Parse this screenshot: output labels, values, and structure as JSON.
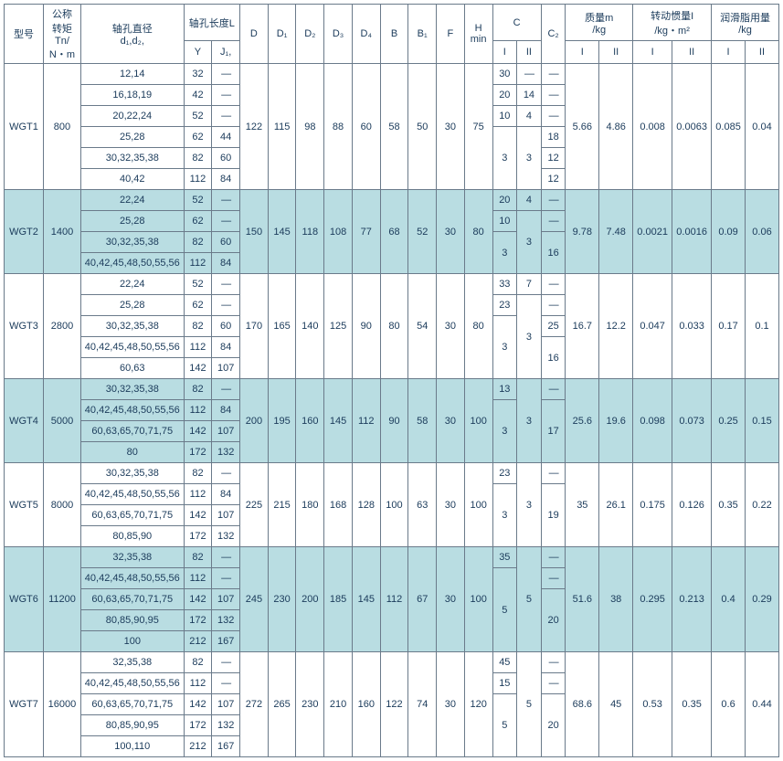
{
  "headers": {
    "model": "型号",
    "tn": "公称\n转矩\nTn/\nN・m",
    "d1d2": "轴孔直径\nd₁,d₂,",
    "boreLen": "轴孔长度L",
    "Y": "Y",
    "J1": "J₁,",
    "D": "D",
    "D1": "D₁",
    "D2": "D₂",
    "D3": "D₃",
    "D4": "D₄",
    "B": "B",
    "B1": "B₁",
    "F": "F",
    "Hmin": "H\nmin",
    "C": "C",
    "C2": "C₂",
    "mass": "质量m\n/kg",
    "inertia": "转动惯量I\n/kg・m²",
    "grease": "润滑脂用量\n/kg",
    "I": "I",
    "II": "II"
  },
  "dash": "—",
  "groups": [
    {
      "model": "WGT1",
      "tn": "800",
      "alt": false,
      "rows": [
        {
          "d": "12,14",
          "y": "32",
          "j": "—",
          "ci": "30",
          "cii": "—",
          "c2": "—"
        },
        {
          "d": "16,18,19",
          "y": "42",
          "j": "—",
          "ci": "20",
          "cii": "14",
          "c2": "—"
        },
        {
          "d": "20,22,24",
          "y": "52",
          "j": "—",
          "ci": "10",
          "cii": "4",
          "c2": "—"
        },
        {
          "d": "25,28",
          "y": "62",
          "j": "44",
          "c2": "18"
        },
        {
          "d": "30,32,35,38",
          "y": "82",
          "j": "60",
          "c2": "12"
        },
        {
          "d": "40,42",
          "y": "112",
          "j": "84",
          "c2": "12"
        }
      ],
      "merge": {
        "ci_from": 3,
        "ci_span": 3,
        "ci": "3",
        "cii_from": 3,
        "cii_span": 3,
        "cii": "3"
      },
      "D": "122",
      "D1": "115",
      "D2": "98",
      "D3": "88",
      "D4": "60",
      "B": "58",
      "B1": "50",
      "F": "30",
      "H": "75",
      "mI": "5.66",
      "mII": "4.86",
      "iI": "0.008",
      "iII": "0.0063",
      "gI": "0.085",
      "gII": "0.04"
    },
    {
      "model": "WGT2",
      "tn": "1400",
      "alt": true,
      "rows": [
        {
          "d": "22,24",
          "y": "52",
          "j": "—",
          "ci": "20",
          "cii": "4",
          "c2": "—"
        },
        {
          "d": "25,28",
          "y": "62",
          "j": "—",
          "ci": "10",
          "c2": "—"
        },
        {
          "d": "30,32,35,38",
          "y": "82",
          "j": "60"
        },
        {
          "d": "40,42,45,48,50,55,56",
          "y": "112",
          "j": "84"
        }
      ],
      "merge": {
        "ci_from": 2,
        "ci_span": 2,
        "ci": "3",
        "cii_from": 1,
        "cii_span": 3,
        "cii": "3",
        "c2_from": 2,
        "c2_span": 2,
        "c2": "16"
      },
      "D": "150",
      "D1": "145",
      "D2": "118",
      "D3": "108",
      "D4": "77",
      "B": "68",
      "B1": "52",
      "F": "30",
      "H": "80",
      "mI": "9.78",
      "mII": "7.48",
      "iI": "0.0021",
      "iII": "0.0016",
      "gI": "0.09",
      "gII": "0.06"
    },
    {
      "model": "WGT3",
      "tn": "2800",
      "alt": false,
      "rows": [
        {
          "d": "22,24",
          "y": "52",
          "j": "—",
          "ci": "33",
          "cii": "7",
          "c2": "—"
        },
        {
          "d": "25,28",
          "y": "62",
          "j": "—",
          "ci": "23",
          "c2": "—"
        },
        {
          "d": "30,32,35,38",
          "y": "82",
          "j": "60",
          "c2": "25"
        },
        {
          "d": "40,42,45,48,50,55,56",
          "y": "112",
          "j": "84"
        },
        {
          "d": "60,63",
          "y": "142",
          "j": "107"
        }
      ],
      "merge": {
        "ci_from": 2,
        "ci_span": 3,
        "ci": "3",
        "cii_from": 1,
        "cii_span": 4,
        "cii": "3",
        "c2_from": 3,
        "c2_span": 2,
        "c2": "16"
      },
      "D": "170",
      "D1": "165",
      "D2": "140",
      "D3": "125",
      "D4": "90",
      "B": "80",
      "B1": "54",
      "F": "30",
      "H": "80",
      "mI": "16.7",
      "mII": "12.2",
      "iI": "0.047",
      "iII": "0.033",
      "gI": "0.17",
      "gII": "0.1"
    },
    {
      "model": "WGT4",
      "tn": "5000",
      "alt": true,
      "rows": [
        {
          "d": "30,32,35,38",
          "y": "82",
          "j": "—",
          "ci": "13",
          "c2": "—"
        },
        {
          "d": "40,42,45,48,50,55,56",
          "y": "112",
          "j": "84"
        },
        {
          "d": "60,63,65,70,71,75",
          "y": "142",
          "j": "107"
        },
        {
          "d": "80",
          "y": "172",
          "j": "132"
        }
      ],
      "merge": {
        "ci_from": 1,
        "ci_span": 3,
        "ci": "3",
        "cii_from": 0,
        "cii_span": 4,
        "cii": "3",
        "c2_from": 1,
        "c2_span": 3,
        "c2": "17"
      },
      "D": "200",
      "D1": "195",
      "D2": "160",
      "D3": "145",
      "D4": "112",
      "B": "90",
      "B1": "58",
      "F": "30",
      "H": "100",
      "mI": "25.6",
      "mII": "19.6",
      "iI": "0.098",
      "iII": "0.073",
      "gI": "0.25",
      "gII": "0.15"
    },
    {
      "model": "WGT5",
      "tn": "8000",
      "alt": false,
      "rows": [
        {
          "d": "30,32,35,38",
          "y": "82",
          "j": "—",
          "ci": "23",
          "c2": "—"
        },
        {
          "d": "40,42,45,48,50,55,56",
          "y": "112",
          "j": "84"
        },
        {
          "d": "60,63,65,70,71,75",
          "y": "142",
          "j": "107"
        },
        {
          "d": "80,85,90",
          "y": "172",
          "j": "132"
        }
      ],
      "merge": {
        "ci_from": 1,
        "ci_span": 3,
        "ci": "3",
        "cii_from": 0,
        "cii_span": 4,
        "cii": "3",
        "c2_from": 1,
        "c2_span": 3,
        "c2": "19"
      },
      "D": "225",
      "D1": "215",
      "D2": "180",
      "D3": "168",
      "D4": "128",
      "B": "100",
      "B1": "63",
      "F": "30",
      "H": "100",
      "mI": "35",
      "mII": "26.1",
      "iI": "0.175",
      "iII": "0.126",
      "gI": "0.35",
      "gII": "0.22"
    },
    {
      "model": "WGT6",
      "tn": "11200",
      "alt": true,
      "rows": [
        {
          "d": "32,35,38",
          "y": "82",
          "j": "—",
          "ci": "35",
          "c2": "—"
        },
        {
          "d": "40,42,45,48,50,55,56",
          "y": "112",
          "j": "—",
          "c2": "—"
        },
        {
          "d": "60,63,65,70,71,75",
          "y": "142",
          "j": "107"
        },
        {
          "d": "80,85,90,95",
          "y": "172",
          "j": "132"
        },
        {
          "d": "100",
          "y": "212",
          "j": "167"
        }
      ],
      "merge": {
        "ci_from": 1,
        "ci_span": 4,
        "ci": "5",
        "cii_from": 0,
        "cii_span": 5,
        "cii": "5",
        "c2_from": 2,
        "c2_span": 3,
        "c2": "20"
      },
      "D": "245",
      "D1": "230",
      "D2": "200",
      "D3": "185",
      "D4": "145",
      "B": "112",
      "B1": "67",
      "F": "30",
      "H": "100",
      "mI": "51.6",
      "mII": "38",
      "iI": "0.295",
      "iII": "0.213",
      "gI": "0.4",
      "gII": "0.29"
    },
    {
      "model": "WGT7",
      "tn": "16000",
      "alt": false,
      "rows": [
        {
          "d": "32,35,38",
          "y": "82",
          "j": "—",
          "ci": "45",
          "c2": "—"
        },
        {
          "d": "40,42,45,48,50,55,56",
          "y": "112",
          "j": "—",
          "ci": "15",
          "c2": "—"
        },
        {
          "d": "60,63,65,70,71,75",
          "y": "142",
          "j": "107"
        },
        {
          "d": "80,85,90,95",
          "y": "172",
          "j": "132"
        },
        {
          "d": "100,110",
          "y": "212",
          "j": "167"
        }
      ],
      "merge": {
        "ci_from": 2,
        "ci_span": 3,
        "ci": "5",
        "cii_from": 0,
        "cii_span": 5,
        "cii": "5",
        "c2_from": 2,
        "c2_span": 3,
        "c2": "20"
      },
      "D": "272",
      "D1": "265",
      "D2": "230",
      "D3": "210",
      "D4": "160",
      "B": "122",
      "B1": "74",
      "F": "30",
      "H": "120",
      "mI": "68.6",
      "mII": "45",
      "iI": "0.53",
      "iII": "0.35",
      "gI": "0.6",
      "gII": "0.44"
    }
  ]
}
